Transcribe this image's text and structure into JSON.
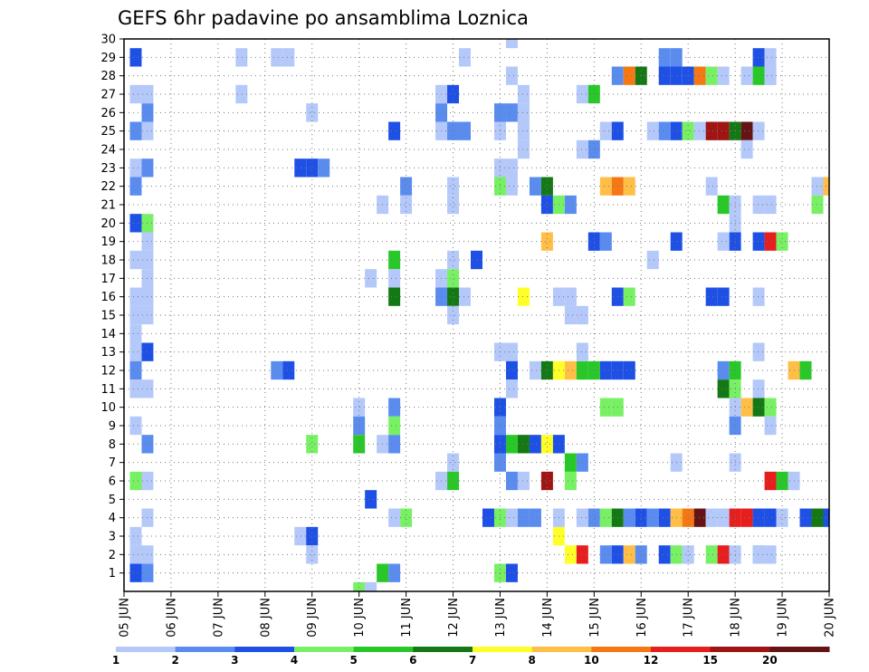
{
  "chart_data": {
    "type": "heatmap",
    "title": "GEFS 6hr padavine po ansamblima Loznica",
    "x_labels": [
      "05 JUN",
      "06 JUN",
      "07 JUN",
      "08 JUN",
      "09 JUN",
      "10 JUN",
      "11 JUN",
      "12 JUN",
      "13 JUN",
      "14 JUN",
      "15 JUN",
      "16 JUN",
      "17 JUN",
      "18 JUN",
      "19 JUN",
      "20 JUN"
    ],
    "y_ticks": [
      1,
      2,
      3,
      4,
      5,
      6,
      7,
      8,
      9,
      10,
      11,
      12,
      13,
      14,
      15,
      16,
      17,
      18,
      19,
      20,
      21,
      22,
      23,
      24,
      25,
      26,
      27,
      28,
      29,
      30
    ],
    "x_range": [
      0,
      60
    ],
    "y_range": [
      0,
      30
    ],
    "x_unit": "6-hour steps from 05 JUN 00Z",
    "y_unit": "ensemble member",
    "grid": true,
    "colorbar": {
      "labels": [
        "1",
        "2",
        "3",
        "4",
        "5",
        "6",
        "7",
        "8",
        "10",
        "12",
        "15",
        "20"
      ],
      "colors": [
        "#b4c8fa",
        "#5a8cf0",
        "#1e50e6",
        "#78f064",
        "#28c828",
        "#147814",
        "#ffff28",
        "#ffbe46",
        "#f57814",
        "#e61e1e",
        "#a01414",
        "#641414"
      ]
    },
    "level_names": [
      "1-2",
      "2-3",
      "3-4",
      "4-5",
      "5-6",
      "6-7",
      "7-8",
      "8-10",
      "10-12",
      "12-15",
      "15-20",
      ">20"
    ],
    "cells": [
      [
        1,
        29,
        3
      ],
      [
        1,
        25,
        2
      ],
      [
        1,
        23,
        1
      ],
      [
        1,
        22,
        2
      ],
      [
        1,
        20,
        3
      ],
      [
        1,
        18,
        1
      ],
      [
        1,
        16,
        1
      ],
      [
        1,
        15,
        1
      ],
      [
        1,
        14,
        1
      ],
      [
        1,
        13,
        1
      ],
      [
        1,
        12,
        2
      ],
      [
        1,
        11,
        1
      ],
      [
        1,
        9,
        1
      ],
      [
        1,
        6,
        4
      ],
      [
        1,
        3,
        1
      ],
      [
        1,
        2,
        1
      ],
      [
        1,
        1,
        3
      ],
      [
        1,
        27,
        1
      ],
      [
        2,
        27,
        1
      ],
      [
        2,
        26,
        2
      ],
      [
        2,
        25,
        1
      ],
      [
        2,
        23,
        2
      ],
      [
        2,
        20,
        4
      ],
      [
        2,
        19,
        1
      ],
      [
        2,
        18,
        1
      ],
      [
        2,
        17,
        1
      ],
      [
        2,
        16,
        1
      ],
      [
        2,
        15,
        1
      ],
      [
        2,
        13,
        3
      ],
      [
        2,
        11,
        1
      ],
      [
        2,
        8,
        2
      ],
      [
        2,
        6,
        1
      ],
      [
        2,
        4,
        1
      ],
      [
        2,
        2,
        1
      ],
      [
        2,
        1,
        2
      ],
      [
        10,
        29,
        1
      ],
      [
        10,
        27,
        1
      ],
      [
        13,
        29,
        1
      ],
      [
        14,
        29,
        1
      ],
      [
        15,
        23,
        3
      ],
      [
        16,
        23,
        3
      ],
      [
        17,
        23,
        2
      ],
      [
        13,
        12,
        2
      ],
      [
        14,
        12,
        3
      ],
      [
        16,
        8,
        4
      ],
      [
        16,
        26,
        1
      ],
      [
        15,
        3,
        1
      ],
      [
        16,
        3,
        3
      ],
      [
        16,
        2,
        1
      ],
      [
        20,
        10,
        1
      ],
      [
        20,
        9,
        2
      ],
      [
        20,
        8,
        5
      ],
      [
        20,
        0,
        4
      ],
      [
        21,
        0,
        1
      ],
      [
        21,
        5,
        3
      ],
      [
        21,
        17,
        1
      ],
      [
        22,
        1,
        5
      ],
      [
        22,
        8,
        1
      ],
      [
        23,
        1,
        2
      ],
      [
        23,
        8,
        2
      ],
      [
        23,
        10,
        2
      ],
      [
        23,
        9,
        4
      ],
      [
        23,
        4,
        1
      ],
      [
        24,
        4,
        4
      ],
      [
        23,
        18,
        5
      ],
      [
        23,
        17,
        1
      ],
      [
        23,
        16,
        6
      ],
      [
        23,
        25,
        3
      ],
      [
        24,
        22,
        2
      ],
      [
        22,
        21,
        1
      ],
      [
        24,
        21,
        1
      ],
      [
        27,
        16,
        2
      ],
      [
        27,
        17,
        1
      ],
      [
        27,
        27,
        1
      ],
      [
        28,
        27,
        3
      ],
      [
        27,
        26,
        2
      ],
      [
        27,
        25,
        1
      ],
      [
        28,
        25,
        2
      ],
      [
        29,
        25,
        2
      ],
      [
        28,
        22,
        1
      ],
      [
        28,
        21,
        1
      ],
      [
        28,
        16,
        6
      ],
      [
        28,
        15,
        1
      ],
      [
        28,
        17,
        4
      ],
      [
        28,
        18,
        1
      ],
      [
        28,
        7,
        1
      ],
      [
        28,
        6,
        5
      ],
      [
        27,
        6,
        1
      ],
      [
        29,
        16,
        1
      ],
      [
        29,
        29,
        1
      ],
      [
        30,
        18,
        3
      ],
      [
        31,
        4,
        3
      ],
      [
        32,
        4,
        4
      ],
      [
        33,
        4,
        1
      ],
      [
        34,
        4,
        2
      ],
      [
        35,
        4,
        2
      ],
      [
        32,
        13,
        1
      ],
      [
        33,
        13,
        1
      ],
      [
        33,
        12,
        3
      ],
      [
        32,
        10,
        3
      ],
      [
        32,
        9,
        2
      ],
      [
        32,
        8,
        3
      ],
      [
        32,
        7,
        2
      ],
      [
        32,
        1,
        4
      ],
      [
        33,
        1,
        3
      ],
      [
        33,
        11,
        1
      ],
      [
        33,
        8,
        5
      ],
      [
        33,
        6,
        2
      ],
      [
        34,
        6,
        1
      ],
      [
        34,
        8,
        6
      ],
      [
        35,
        8,
        3
      ],
      [
        36,
        8,
        7
      ],
      [
        37,
        8,
        3
      ],
      [
        32,
        26,
        2
      ],
      [
        33,
        26,
        2
      ],
      [
        34,
        26,
        1
      ],
      [
        34,
        27,
        1
      ],
      [
        33,
        28,
        1
      ],
      [
        33,
        30,
        1
      ],
      [
        32,
        25,
        1
      ],
      [
        32,
        23,
        1
      ],
      [
        33,
        23,
        1
      ],
      [
        33,
        22,
        1
      ],
      [
        32,
        22,
        4
      ],
      [
        34,
        24,
        1
      ],
      [
        34,
        25,
        1
      ],
      [
        34,
        16,
        7
      ],
      [
        35,
        12,
        1
      ],
      [
        35,
        22,
        2
      ],
      [
        36,
        22,
        6
      ],
      [
        36,
        21,
        3
      ],
      [
        37,
        21,
        4
      ],
      [
        38,
        21,
        2
      ],
      [
        36,
        12,
        6
      ],
      [
        37,
        12,
        7
      ],
      [
        38,
        12,
        8
      ],
      [
        39,
        12,
        5
      ],
      [
        40,
        12,
        5
      ],
      [
        41,
        12,
        3
      ],
      [
        42,
        12,
        3
      ],
      [
        43,
        12,
        3
      ],
      [
        38,
        15,
        1
      ],
      [
        39,
        15,
        1
      ],
      [
        38,
        6,
        4
      ],
      [
        38,
        7,
        5
      ],
      [
        39,
        7,
        2
      ],
      [
        37,
        16,
        1
      ],
      [
        38,
        16,
        1
      ],
      [
        36,
        19,
        8
      ],
      [
        36,
        6,
        11
      ],
      [
        39,
        13,
        1
      ],
      [
        37,
        3,
        7
      ],
      [
        37,
        4,
        1
      ],
      [
        39,
        4,
        1
      ],
      [
        40,
        4,
        2
      ],
      [
        41,
        4,
        4
      ],
      [
        42,
        4,
        6
      ],
      [
        43,
        4,
        2
      ],
      [
        44,
        4,
        3
      ],
      [
        45,
        4,
        2
      ],
      [
        46,
        4,
        3
      ],
      [
        47,
        4,
        8
      ],
      [
        48,
        4,
        9
      ],
      [
        49,
        4,
        12
      ],
      [
        50,
        4,
        1
      ],
      [
        51,
        4,
        1
      ],
      [
        52,
        4,
        10
      ],
      [
        53,
        4,
        10
      ],
      [
        54,
        4,
        3
      ],
      [
        55,
        4,
        3
      ],
      [
        56,
        4,
        1
      ],
      [
        58,
        4,
        3
      ],
      [
        59,
        4,
        6
      ],
      [
        60,
        4,
        3
      ],
      [
        38,
        2,
        7
      ],
      [
        39,
        2,
        10
      ],
      [
        41,
        2,
        2
      ],
      [
        42,
        2,
        3
      ],
      [
        43,
        2,
        8
      ],
      [
        44,
        2,
        2
      ],
      [
        46,
        2,
        3
      ],
      [
        47,
        2,
        4
      ],
      [
        48,
        2,
        1
      ],
      [
        50,
        2,
        4
      ],
      [
        51,
        2,
        10
      ],
      [
        54,
        2,
        4
      ],
      [
        55,
        2,
        1
      ],
      [
        39,
        24,
        1
      ],
      [
        40,
        24,
        2
      ],
      [
        39,
        27,
        1
      ],
      [
        40,
        27,
        5
      ],
      [
        40,
        19,
        3
      ],
      [
        41,
        19,
        2
      ],
      [
        41,
        25,
        1
      ],
      [
        42,
        25,
        3
      ],
      [
        41,
        22,
        8
      ],
      [
        42,
        22,
        9
      ],
      [
        43,
        22,
        8
      ],
      [
        42,
        16,
        3
      ],
      [
        43,
        16,
        4
      ],
      [
        41,
        10,
        4
      ],
      [
        42,
        10,
        4
      ],
      [
        45,
        18,
        1
      ],
      [
        42,
        28,
        2
      ],
      [
        43,
        28,
        9
      ],
      [
        44,
        28,
        6
      ],
      [
        46,
        28,
        3
      ],
      [
        47,
        28,
        3
      ],
      [
        48,
        28,
        3
      ],
      [
        49,
        28,
        9
      ],
      [
        50,
        28,
        4
      ],
      [
        51,
        28,
        1
      ],
      [
        53,
        28,
        1
      ],
      [
        54,
        28,
        5
      ],
      [
        55,
        28,
        1
      ],
      [
        46,
        29,
        2
      ],
      [
        47,
        29,
        2
      ],
      [
        45,
        25,
        1
      ],
      [
        46,
        25,
        2
      ],
      [
        47,
        25,
        3
      ],
      [
        48,
        25,
        4
      ],
      [
        49,
        25,
        1
      ],
      [
        50,
        25,
        11
      ],
      [
        51,
        25,
        11
      ],
      [
        52,
        25,
        6
      ],
      [
        53,
        25,
        12
      ],
      [
        54,
        25,
        1
      ],
      [
        47,
        19,
        3
      ],
      [
        50,
        22,
        1
      ],
      [
        51,
        21,
        5
      ],
      [
        52,
        21,
        1
      ],
      [
        52,
        20,
        1
      ],
      [
        52,
        19,
        3
      ],
      [
        51,
        19,
        1
      ],
      [
        50,
        16,
        3
      ],
      [
        51,
        16,
        3
      ],
      [
        51,
        12,
        2
      ],
      [
        52,
        12,
        5
      ],
      [
        51,
        11,
        6
      ],
      [
        52,
        11,
        4
      ],
      [
        52,
        10,
        1
      ],
      [
        53,
        10,
        8
      ],
      [
        54,
        10,
        6
      ],
      [
        55,
        10,
        4
      ],
      [
        52,
        9,
        2
      ],
      [
        52,
        7,
        1
      ],
      [
        47,
        7,
        1
      ],
      [
        52,
        2,
        1
      ],
      [
        54,
        2,
        1
      ],
      [
        53,
        24,
        1
      ],
      [
        54,
        29,
        3
      ],
      [
        55,
        29,
        1
      ],
      [
        55,
        28,
        1
      ],
      [
        54,
        19,
        3
      ],
      [
        55,
        19,
        10
      ],
      [
        56,
        19,
        4
      ],
      [
        54,
        21,
        1
      ],
      [
        55,
        21,
        1
      ],
      [
        54,
        16,
        1
      ],
      [
        54,
        13,
        1
      ],
      [
        54,
        11,
        1
      ],
      [
        55,
        9,
        1
      ],
      [
        55,
        6,
        10
      ],
      [
        56,
        6,
        5
      ],
      [
        57,
        6,
        1
      ],
      [
        57,
        12,
        8
      ],
      [
        58,
        12,
        5
      ],
      [
        59,
        21,
        4
      ],
      [
        59,
        22,
        1
      ],
      [
        60,
        22,
        8
      ]
    ]
  }
}
